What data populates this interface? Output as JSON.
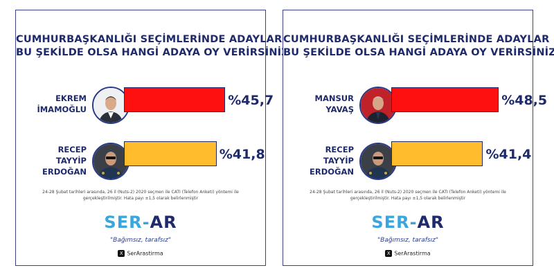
{
  "colors": {
    "frame": "#3a3f8f",
    "title": "#1f2a6b",
    "red_bar": "#ff1010",
    "yellow_bar": "#ffbd2e",
    "logo_blue": "#3aa6dd"
  },
  "chart_data": [
    {
      "type": "bar",
      "title": "CUMHURBAŞKANLIĞI SEÇİMLERİNDE ADAYLAR",
      "subtitle": "BU ŞEKİLDE OLSA HANGİ ADAYA OY VERİRSİNİZ?",
      "categories": [
        "EKREM İMAMOĞLU",
        "RECEP TAYYİP ERDOĞAN"
      ],
      "name_lines": [
        [
          "EKREM",
          "İMAMOĞLU"
        ],
        [
          "RECEP",
          "TAYYİP",
          "ERDOĞAN"
        ]
      ],
      "values": [
        45.7,
        41.8
      ],
      "labels": [
        "%45,7",
        "%41,8"
      ],
      "bar_colors": [
        "#ff1010",
        "#ffbd2e"
      ],
      "xlim": [
        0,
        50
      ],
      "grid": false,
      "note_lines": [
        "24-28 Şubat tarihleri arasında, 26 il (Nuts-2) 2020 seçmen ile CATI (Telefon Anketi) yöntemi ile",
        "gerçekleştirilmiştir.  Hata payı ±1,5 olarak belirlenmiştir"
      ],
      "logo": {
        "ser": "SER-",
        "ar": "AR"
      },
      "slogan": "\"Bağımsız, tarafsız\"",
      "social": "SerArastirma",
      "icons": [
        "x-logo-icon"
      ]
    },
    {
      "type": "bar",
      "title": "CUMHURBAŞKANLIĞI SEÇİMLERİNDE ADAYLAR",
      "subtitle": "BU ŞEKİLDE OLSA HANGİ ADAYA OY VERİRSİNİZ?",
      "categories": [
        "MANSUR YAVAŞ",
        "RECEP TAYYİP ERDOĞAN"
      ],
      "name_lines": [
        [
          "MANSUR",
          "YAVAŞ"
        ],
        [
          "RECEP",
          "TAYYİP",
          "ERDOĞAN"
        ]
      ],
      "values": [
        48.5,
        41.4
      ],
      "labels": [
        "%48,5",
        "%41,4"
      ],
      "bar_colors": [
        "#ff1010",
        "#ffbd2e"
      ],
      "xlim": [
        0,
        50
      ],
      "grid": false,
      "note_lines": [
        "24-28 Şubat tarihleri arasında, 26 il (Nuts-2) 2020 seçmen ile CATI (Telefon Anketi) yöntemi ile",
        "gerçekleştirilmiştir.  Hata payı ±1,5 olarak belirlenmiştir"
      ],
      "logo": {
        "ser": "SER-",
        "ar": "AR"
      },
      "slogan": "\"Bağımsız, tarafsız\"",
      "social": "SerArastirma",
      "icons": [
        "x-logo-icon"
      ]
    }
  ]
}
